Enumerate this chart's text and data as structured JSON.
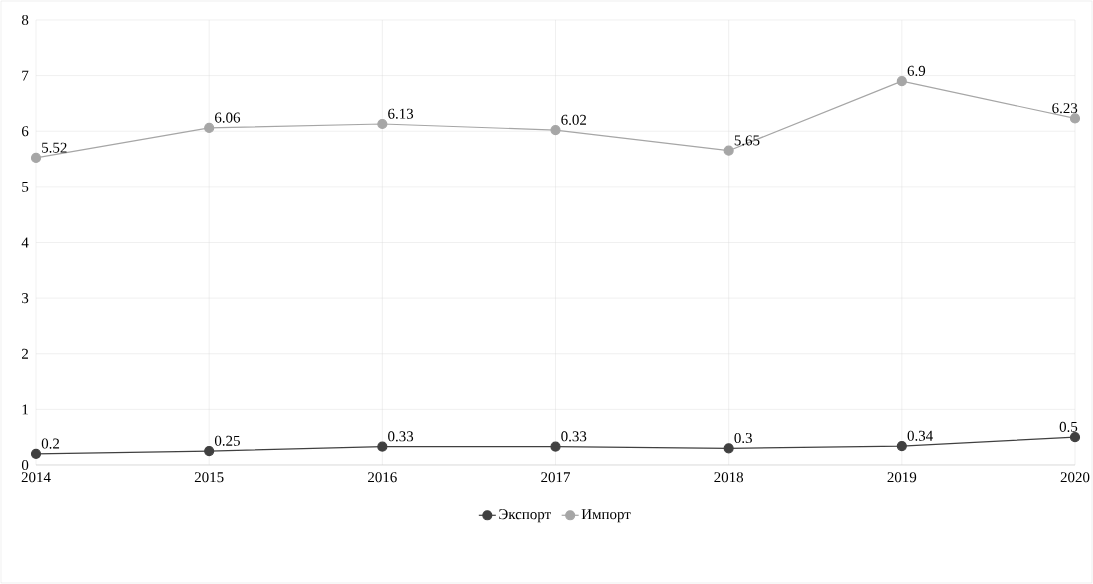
{
  "chart_data": {
    "type": "line",
    "categories": [
      "2014",
      "2015",
      "2016",
      "2017",
      "2018",
      "2019",
      "2020"
    ],
    "series": [
      {
        "name": "Экспорт",
        "color": "#404040",
        "values": [
          0.2,
          0.25,
          0.33,
          0.33,
          0.3,
          0.34,
          0.5
        ]
      },
      {
        "name": "Импорт",
        "color": "#a6a6a6",
        "values": [
          5.52,
          6.06,
          6.13,
          6.02,
          5.65,
          6.9,
          6.23
        ]
      }
    ],
    "ylim": [
      0,
      8
    ],
    "yticks": [
      0,
      1,
      2,
      3,
      4,
      5,
      6,
      7,
      8
    ],
    "grid": true,
    "legend": "bottom",
    "marker": "circle",
    "line_style": "solid",
    "data_labels": true
  }
}
